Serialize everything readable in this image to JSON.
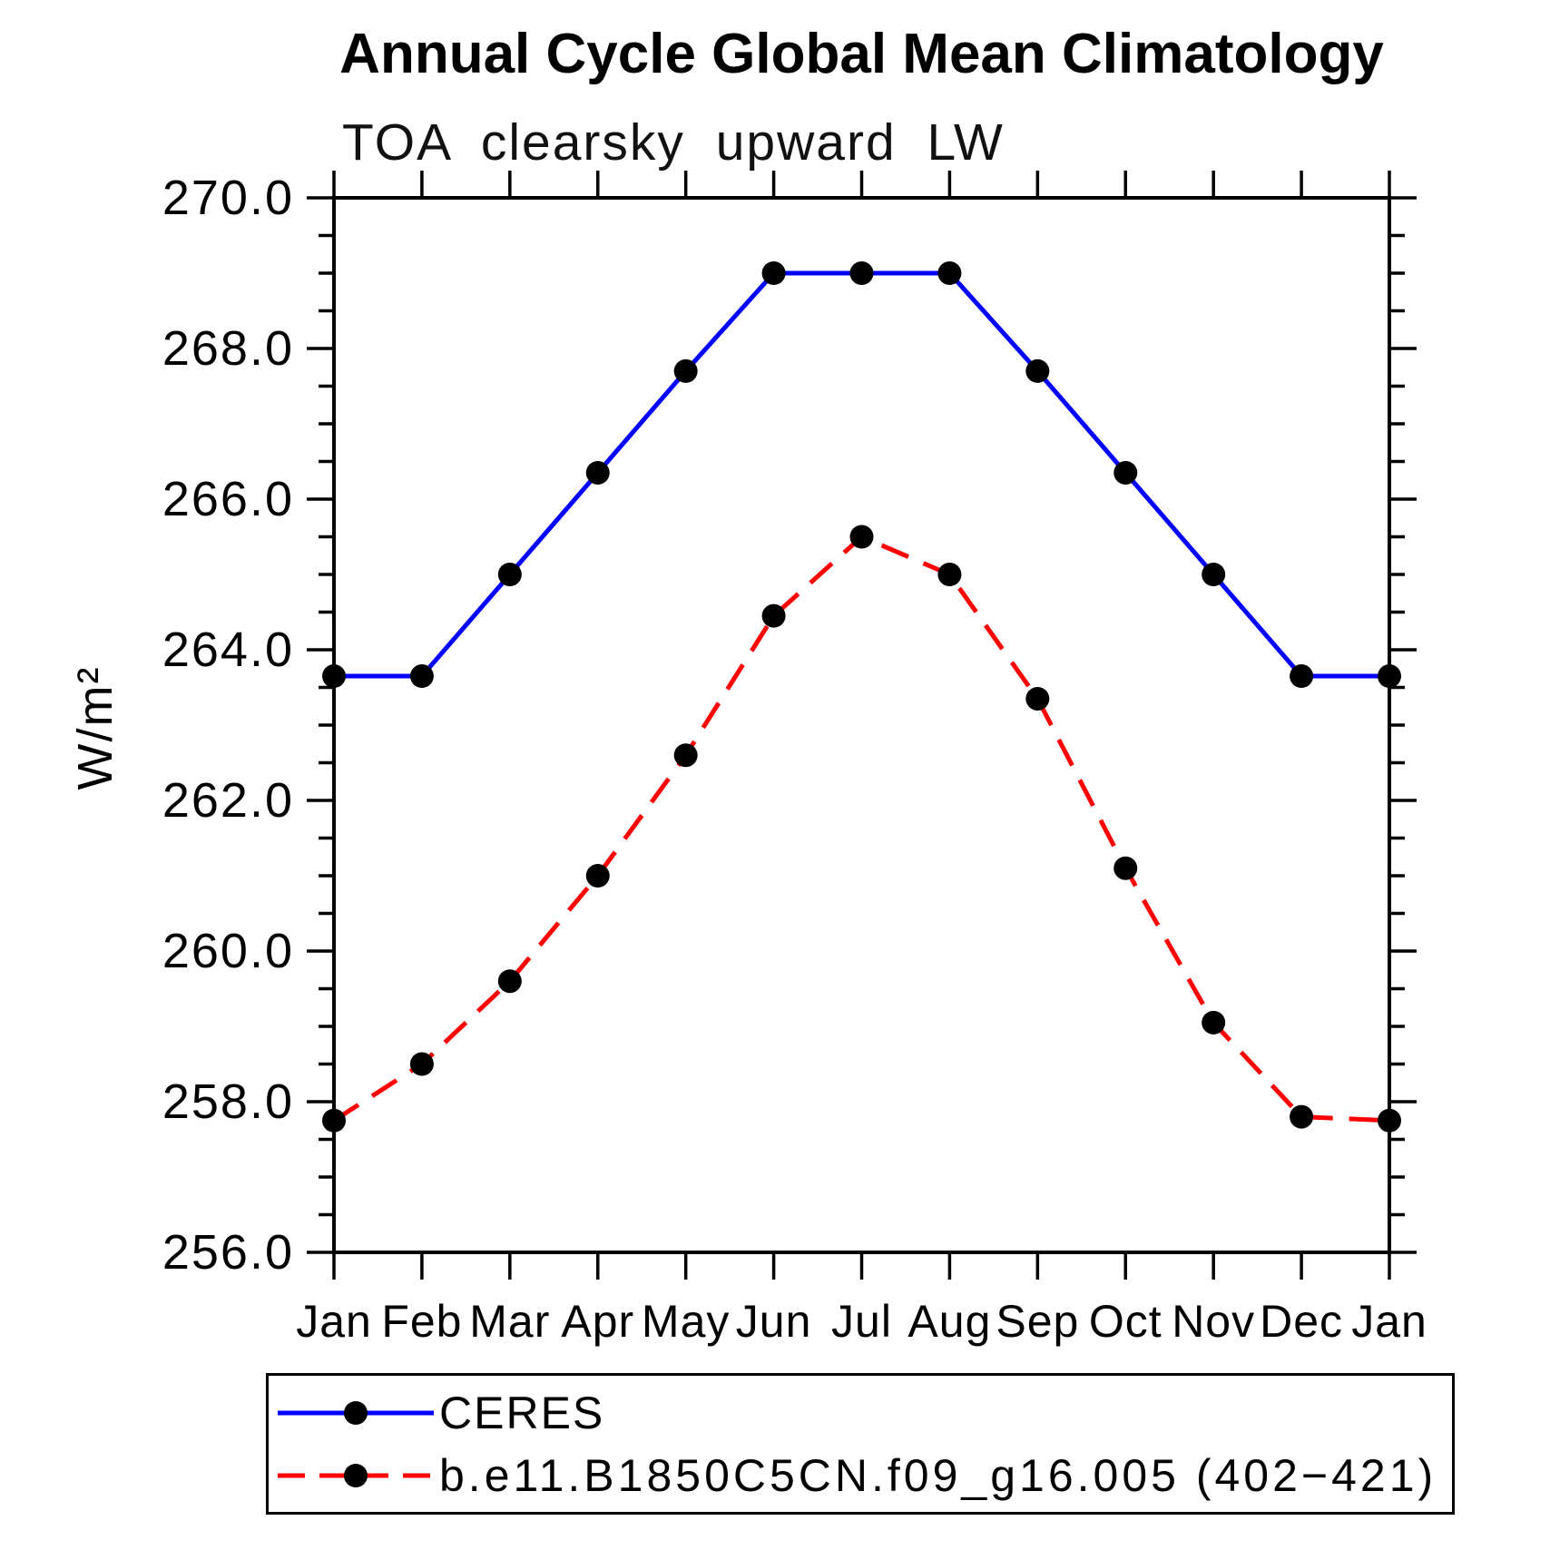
{
  "figure": {
    "title": "Annual Cycle Global Mean Climatology",
    "subtitle": "TOA clearsky upward LW",
    "ylabel": "W/m²"
  },
  "chart_data": {
    "type": "line",
    "title": "Annual Cycle Global Mean Climatology",
    "subtitle": "TOA clearsky upward LW",
    "xlabel": "",
    "ylabel": "W/m²",
    "ylim": [
      256.0,
      270.0
    ],
    "ytick_major": 2.0,
    "ytick_minor": 0.5,
    "ytick_labels": [
      "256.0",
      "258.0",
      "260.0",
      "262.0",
      "264.0",
      "266.0",
      "268.0",
      "270.0"
    ],
    "grid": false,
    "legend_position": "bottom-left-box",
    "categories": [
      "Jan",
      "Feb",
      "Mar",
      "Apr",
      "May",
      "Jun",
      "Jul",
      "Aug",
      "Sep",
      "Oct",
      "Nov",
      "Dec",
      "Jan"
    ],
    "series": [
      {
        "name": "CERES",
        "color": "#0000ff",
        "line_style": "solid",
        "marker": "filled-circle",
        "marker_color": "#000000",
        "values": [
          263.65,
          263.65,
          265.0,
          266.35,
          267.7,
          269.0,
          269.0,
          269.0,
          267.7,
          266.35,
          265.0,
          263.65,
          263.65
        ]
      },
      {
        "name": "b.e11.B1850C5CN.f09_g16.005 (402−421)",
        "color": "#ff0000",
        "line_style": "dashed",
        "marker": "filled-circle",
        "marker_color": "#000000",
        "values": [
          257.75,
          258.5,
          259.6,
          261.0,
          262.6,
          264.45,
          265.5,
          265.0,
          263.35,
          261.1,
          259.05,
          257.8,
          257.75
        ]
      }
    ]
  }
}
